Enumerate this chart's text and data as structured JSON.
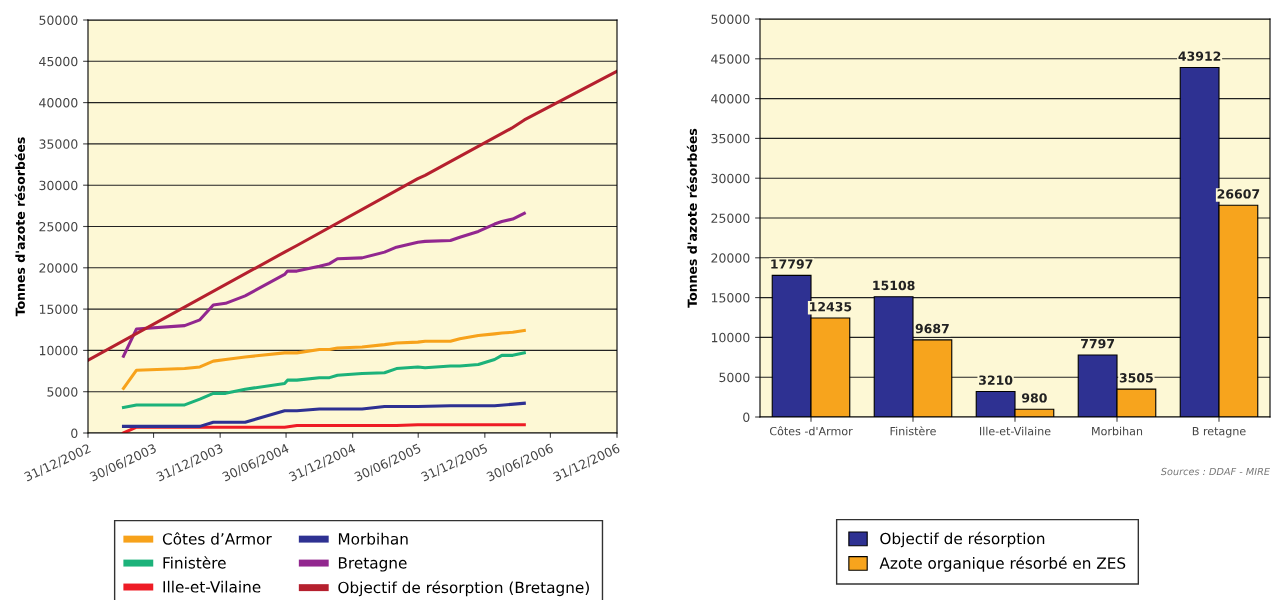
{
  "chart_data": [
    {
      "type": "line",
      "ylabel": "Tonnes d'azote résorbées",
      "xlim": [
        "2002-12-31",
        "2006-12-31"
      ],
      "xticks": [
        {
          "value": "2002-12-31",
          "label": "31/12/2002"
        },
        {
          "value": "2003-06-30",
          "label": "30/06/2003"
        },
        {
          "value": "2003-12-31",
          "label": "31/12/2003"
        },
        {
          "value": "2004-06-30",
          "label": "30/06/2004"
        },
        {
          "value": "2004-12-31",
          "label": "31/12/2004"
        },
        {
          "value": "2005-06-30",
          "label": "30/06/2005"
        },
        {
          "value": "2005-12-31",
          "label": "31/12/2005"
        },
        {
          "value": "2006-06-30",
          "label": "30/06/2006"
        },
        {
          "value": "2006-12-31",
          "label": "31/12/2006"
        }
      ],
      "ylim": [
        0,
        50000
      ],
      "yticks": [
        0,
        5000,
        10000,
        15000,
        20000,
        25000,
        30000,
        35000,
        40000,
        45000,
        50000
      ],
      "grid": "y",
      "legend": "bottom",
      "marker": "none",
      "line_style": "solid",
      "series": [
        {
          "name": "Côtes d’Armor",
          "color": "#f7a21b",
          "x": [
            "2003-04-08",
            "2003-05-14",
            "2003-09-24",
            "2003-11-05",
            "2003-12-12",
            "2004-01-15",
            "2004-03-09",
            "2004-06-26",
            "2004-07-30",
            "2004-09-30",
            "2004-10-28",
            "2004-11-19",
            "2005-01-26",
            "2005-03-29",
            "2005-05-01",
            "2005-06-29",
            "2005-07-19",
            "2005-09-27",
            "2005-10-23",
            "2005-12-13",
            "2006-01-27",
            "2006-02-16",
            "2006-03-18",
            "2006-04-19"
          ],
          "values": [
            5400,
            7600,
            7800,
            8000,
            8700,
            8900,
            9200,
            9700,
            9700,
            10100,
            10100,
            10300,
            10400,
            10700,
            10900,
            11000,
            11100,
            11100,
            11400,
            11800,
            12000,
            12100,
            12200,
            12400
          ]
        },
        {
          "name": "Finistère",
          "color": "#1cb27a",
          "x": [
            "2003-04-08",
            "2003-05-14",
            "2003-09-24",
            "2003-11-05",
            "2003-12-12",
            "2004-01-15",
            "2004-03-09",
            "2004-06-26",
            "2004-07-04",
            "2004-07-30",
            "2004-09-30",
            "2004-10-28",
            "2004-11-19",
            "2005-01-26",
            "2005-03-29",
            "2005-05-01",
            "2005-06-29",
            "2005-07-19",
            "2005-09-27",
            "2005-10-23",
            "2005-12-13",
            "2006-01-27",
            "2006-02-16",
            "2006-03-18",
            "2006-04-19"
          ],
          "values": [
            3100,
            3400,
            3400,
            4100,
            4800,
            4800,
            5300,
            6000,
            6400,
            6400,
            6700,
            6700,
            7000,
            7200,
            7300,
            7800,
            8000,
            7900,
            8100,
            8100,
            8300,
            8900,
            9400,
            9400,
            9700
          ]
        },
        {
          "name": "Ille-et-Vilaine",
          "color": "#ee1c25",
          "x": [
            "2003-04-08",
            "2003-05-14",
            "2004-06-26",
            "2004-07-30",
            "2005-05-01",
            "2005-06-29",
            "2006-04-19"
          ],
          "values": [
            0,
            700,
            700,
            900,
            900,
            1000,
            1000
          ]
        },
        {
          "name": "Morbihan",
          "color": "#2e3192",
          "x": [
            "2003-04-08",
            "2003-11-05",
            "2003-12-12",
            "2004-03-09",
            "2004-06-26",
            "2004-07-30",
            "2004-09-30",
            "2005-01-26",
            "2005-03-29",
            "2005-06-29",
            "2005-09-27",
            "2006-01-27",
            "2006-04-19"
          ],
          "values": [
            800,
            800,
            1300,
            1300,
            2700,
            2700,
            2900,
            2900,
            3200,
            3200,
            3300,
            3300,
            3600
          ]
        },
        {
          "name": "Bretagne",
          "color": "#92278f",
          "x": [
            "2003-04-08",
            "2003-05-14",
            "2003-09-24",
            "2003-11-05",
            "2003-12-12",
            "2004-01-15",
            "2004-03-09",
            "2004-06-26",
            "2004-07-04",
            "2004-07-30",
            "2004-09-30",
            "2004-10-28",
            "2004-11-19",
            "2005-01-26",
            "2005-03-29",
            "2005-05-01",
            "2005-06-29",
            "2005-07-19",
            "2005-09-27",
            "2005-10-23",
            "2005-12-13",
            "2006-01-27",
            "2006-02-16",
            "2006-03-18",
            "2006-04-19"
          ],
          "values": [
            9300,
            12600,
            13000,
            13700,
            15500,
            15700,
            16600,
            19200,
            19600,
            19600,
            20200,
            20500,
            21100,
            21200,
            21900,
            22500,
            23100,
            23200,
            23300,
            23700,
            24400,
            25300,
            25600,
            25900,
            26600
          ]
        },
        {
          "name": "Objectif de résorption (Bretagne)",
          "color": "#b5202e",
          "x": [
            "2002-12-31",
            "2004-06-26",
            "2004-07-30",
            "2005-06-29",
            "2005-07-19",
            "2006-03-15",
            "2006-04-19",
            "2006-12-31"
          ],
          "values": [
            8800,
            21900,
            22700,
            30800,
            31200,
            36900,
            37900,
            43800
          ]
        }
      ]
    },
    {
      "type": "bar",
      "ylabel": "Tonnes d'azote résorbées",
      "categories": [
        "Côtes -d'Armor",
        "Finistère",
        "Ille-et-Vilaine",
        "Morbihan",
        "B retagne"
      ],
      "ylim": [
        0,
        50000
      ],
      "yticks": [
        0,
        5000,
        10000,
        15000,
        20000,
        25000,
        30000,
        35000,
        40000,
        45000,
        50000
      ],
      "grid": "y",
      "legend": "bottom",
      "data_labels": true,
      "annotations": [
        "Sources : DDAF - MIRE"
      ],
      "series": [
        {
          "name": "Objectif de résorption",
          "color": "#2e3192",
          "values": [
            17797,
            15108,
            3210,
            7797,
            43912
          ]
        },
        {
          "name": "Azote organique résorbé en ZES",
          "color": "#f7a41d",
          "values": [
            12435,
            9687,
            980,
            3505,
            26607
          ]
        }
      ]
    }
  ]
}
